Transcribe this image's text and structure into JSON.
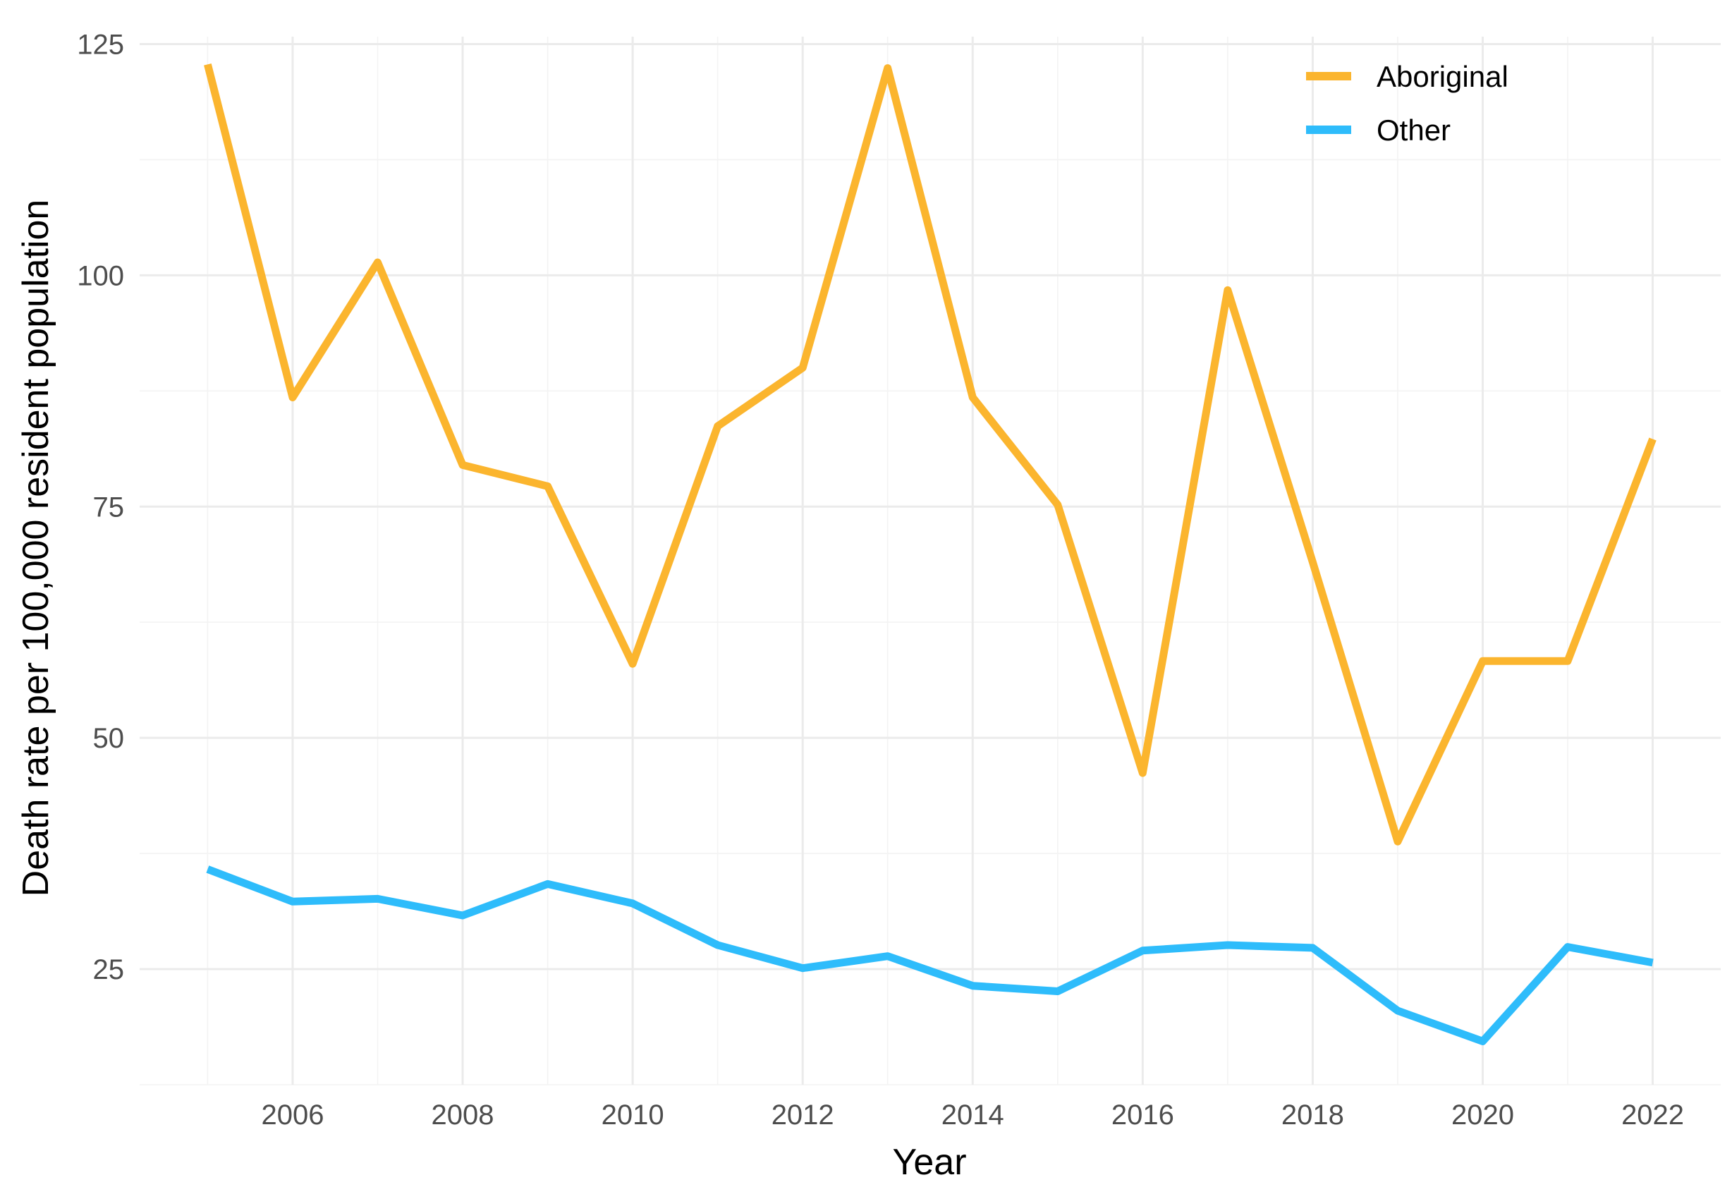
{
  "chart_data": {
    "type": "line",
    "title": "",
    "xlabel": "Year",
    "ylabel": "Death rate per 100,000 resident population",
    "x": [
      2005,
      2006,
      2007,
      2008,
      2009,
      2010,
      2011,
      2012,
      2013,
      2014,
      2015,
      2016,
      2017,
      2018,
      2019,
      2020,
      2021,
      2022
    ],
    "series": [
      {
        "name": "Aboriginal",
        "color": "#fbb52e",
        "values": [
          122.8,
          86.8,
          101.4,
          79.5,
          77.2,
          58.0,
          83.7,
          90.0,
          122.4,
          86.8,
          75.2,
          46.2,
          98.4,
          69.0,
          38.8,
          58.3,
          58.3,
          82.3
        ]
      },
      {
        "name": "Other",
        "color": "#2ebcfb",
        "values": [
          35.8,
          32.3,
          32.6,
          30.8,
          34.2,
          32.1,
          27.6,
          25.1,
          26.4,
          23.2,
          22.6,
          27.0,
          27.6,
          27.3,
          20.5,
          17.2,
          27.4,
          25.7
        ]
      }
    ],
    "xlim": [
      2004.2,
      2022.8
    ],
    "ylim": [
      12.5,
      125.8
    ],
    "xticks": [
      2006,
      2008,
      2010,
      2012,
      2014,
      2016,
      2018,
      2020,
      2022
    ],
    "yticks": [
      25,
      50,
      75,
      100,
      125
    ],
    "grid": true,
    "legend_position": "top-right"
  }
}
